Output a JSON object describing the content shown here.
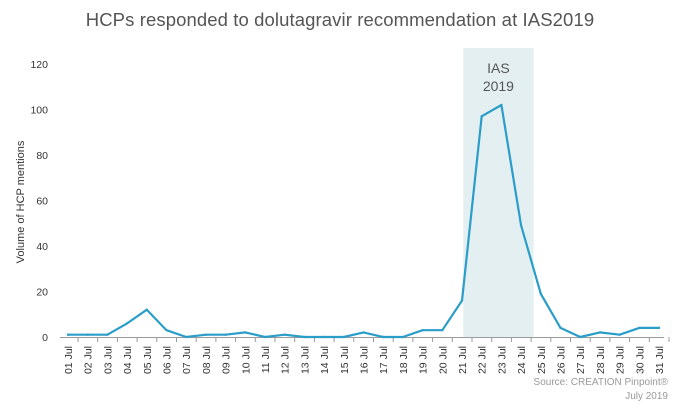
{
  "chart_data": {
    "type": "line",
    "title": "HCPs responded to dolutagravir recommendation at IAS2019",
    "xlabel": "",
    "ylabel": "Volume of HCP mentions",
    "ylim": [
      0,
      120
    ],
    "yticks": [
      0,
      20,
      40,
      60,
      80,
      100,
      120
    ],
    "grid": false,
    "categories": [
      "01 Jul",
      "02 Jul",
      "03 Jul",
      "04 Jul",
      "05 Jul",
      "06 Jul",
      "07 Jul",
      "08 Jul",
      "09 Jul",
      "10 Jul",
      "11 Jul",
      "12 Jul",
      "13 Jul",
      "14 Jul",
      "15 Jul",
      "16 Jul",
      "17 Jul",
      "18 Jul",
      "19 Jul",
      "20 Jul",
      "21 Jul",
      "22 Jul",
      "23 Jul",
      "24 Jul",
      "25 Jul",
      "26 Jul",
      "27 Jul",
      "28 Jul",
      "29 Jul",
      "30 Jul",
      "31 Jul"
    ],
    "series": [
      {
        "name": "Volume of HCP mentions",
        "color": "#2b9dc9",
        "values": [
          1,
          1,
          1,
          6,
          12,
          3,
          0,
          1,
          1,
          2,
          0,
          1,
          0,
          0,
          0,
          2,
          0,
          0,
          3,
          3,
          16,
          97,
          102,
          49,
          19,
          4,
          0,
          2,
          1,
          4,
          4
        ]
      }
    ],
    "highlight": {
      "label_line1": "IAS",
      "label_line2": "2019",
      "from": "21 Jul",
      "to": "24 Jul",
      "color": "#e4eff1"
    }
  },
  "source": {
    "line1": "Source: CREATION Pinpoint®",
    "line2": "July 2019"
  }
}
